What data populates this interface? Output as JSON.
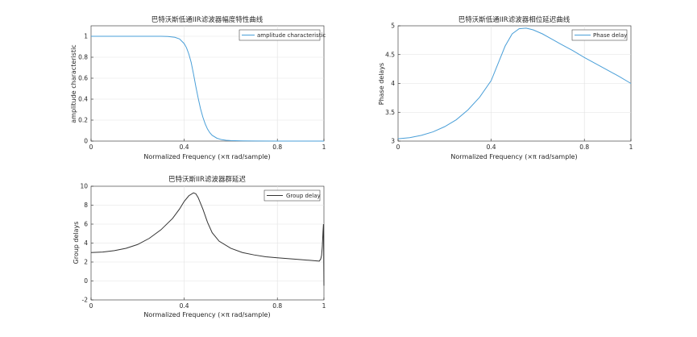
{
  "chart_data": [
    {
      "type": "line",
      "title": "巴特沃斯低通IIR滤波器幅度特性曲线",
      "xlabel": "Normalized Frequency  (×π rad/sample)",
      "ylabel": "amplitude characteristic",
      "xlim": [
        0,
        1
      ],
      "ylim": [
        0,
        1.1
      ],
      "xticks": [
        0,
        0.4,
        0.8,
        1
      ],
      "xtick_labels": [
        "0",
        "0.4",
        "0.8",
        "1"
      ],
      "yticks": [
        0,
        0.2,
        0.4,
        0.6,
        0.8,
        1
      ],
      "ytick_labels": [
        "0",
        "0.2",
        "0.4",
        "0.6",
        "0.8",
        "1"
      ],
      "grid": true,
      "legend_position": "top-right",
      "series": [
        {
          "name": "amplitude characteristic",
          "color": "#4a9fd8",
          "x": [
            0,
            0.05,
            0.1,
            0.15,
            0.2,
            0.25,
            0.3,
            0.33,
            0.36,
            0.38,
            0.4,
            0.41,
            0.42,
            0.43,
            0.44,
            0.45,
            0.46,
            0.47,
            0.48,
            0.49,
            0.5,
            0.51,
            0.52,
            0.54,
            0.56,
            0.58,
            0.6,
            0.65,
            0.7,
            0.8,
            0.9,
            1.0
          ],
          "y": [
            1.0,
            1.0,
            1.0,
            1.0,
            1.0,
            1.0,
            1.0,
            0.998,
            0.99,
            0.975,
            0.93,
            0.89,
            0.83,
            0.75,
            0.64,
            0.52,
            0.41,
            0.31,
            0.23,
            0.165,
            0.115,
            0.08,
            0.055,
            0.028,
            0.014,
            0.008,
            0.005,
            0.002,
            0.001,
            0.0,
            0.0,
            0.0
          ]
        }
      ]
    },
    {
      "type": "line",
      "title": "巴特沃斯低通IIR滤波器相位延迟曲线",
      "xlabel": "Normalized Frequency  (×π rad/sample)",
      "ylabel": "Phase delays",
      "xlim": [
        0,
        1
      ],
      "ylim": [
        3,
        5
      ],
      "xticks": [
        0,
        0.4,
        0.8,
        1
      ],
      "xtick_labels": [
        "0",
        "0.4",
        "0.8",
        "1"
      ],
      "yticks": [
        3,
        3.5,
        4,
        4.5,
        5
      ],
      "ytick_labels": [
        "3",
        "3.5",
        "4",
        "4.5",
        "5"
      ],
      "grid": true,
      "legend_position": "top-right",
      "series": [
        {
          "name": "Phase delay",
          "color": "#4a9fd8",
          "x": [
            0,
            0.05,
            0.1,
            0.15,
            0.2,
            0.25,
            0.3,
            0.35,
            0.4,
            0.43,
            0.46,
            0.49,
            0.52,
            0.55,
            0.58,
            0.62,
            0.66,
            0.7,
            0.75,
            0.8,
            0.85,
            0.9,
            0.95,
            1.0
          ],
          "y": [
            3.04,
            3.06,
            3.1,
            3.16,
            3.25,
            3.37,
            3.54,
            3.76,
            4.05,
            4.35,
            4.65,
            4.86,
            4.95,
            4.96,
            4.93,
            4.86,
            4.77,
            4.68,
            4.57,
            4.45,
            4.34,
            4.23,
            4.12,
            4.0
          ]
        }
      ]
    },
    {
      "type": "line",
      "title": "巴特沃斯IIR滤波器群延迟",
      "xlabel": "Normalized Frequency  (×π rad/sample)",
      "ylabel": "Group delays",
      "xlim": [
        0,
        1
      ],
      "ylim": [
        -2,
        10
      ],
      "xticks": [
        0,
        0.4,
        0.8,
        1
      ],
      "xtick_labels": [
        "0",
        "0.4",
        "0.8",
        "1"
      ],
      "yticks": [
        -2,
        0,
        2,
        4,
        6,
        8,
        10
      ],
      "ytick_labels": [
        "-2",
        "0",
        "2",
        "4",
        "6",
        "8",
        "10"
      ],
      "grid": true,
      "legend_position": "top-right",
      "series": [
        {
          "name": "Group delay",
          "color": "#333333",
          "x": [
            0,
            0.05,
            0.1,
            0.15,
            0.2,
            0.25,
            0.3,
            0.35,
            0.38,
            0.4,
            0.42,
            0.44,
            0.45,
            0.46,
            0.48,
            0.5,
            0.52,
            0.55,
            0.6,
            0.65,
            0.7,
            0.75,
            0.8,
            0.85,
            0.9,
            0.94,
            0.97,
            0.98,
            0.986,
            0.99,
            0.993,
            0.996,
            0.998,
            1.0
          ],
          "y": [
            3.0,
            3.05,
            3.2,
            3.45,
            3.85,
            4.5,
            5.4,
            6.6,
            7.6,
            8.4,
            9.0,
            9.3,
            9.2,
            8.8,
            7.6,
            6.2,
            5.1,
            4.2,
            3.45,
            3.0,
            2.75,
            2.55,
            2.45,
            2.35,
            2.25,
            2.18,
            2.12,
            2.1,
            2.3,
            2.7,
            3.6,
            5.2,
            6.0,
            -0.5
          ]
        }
      ]
    }
  ]
}
